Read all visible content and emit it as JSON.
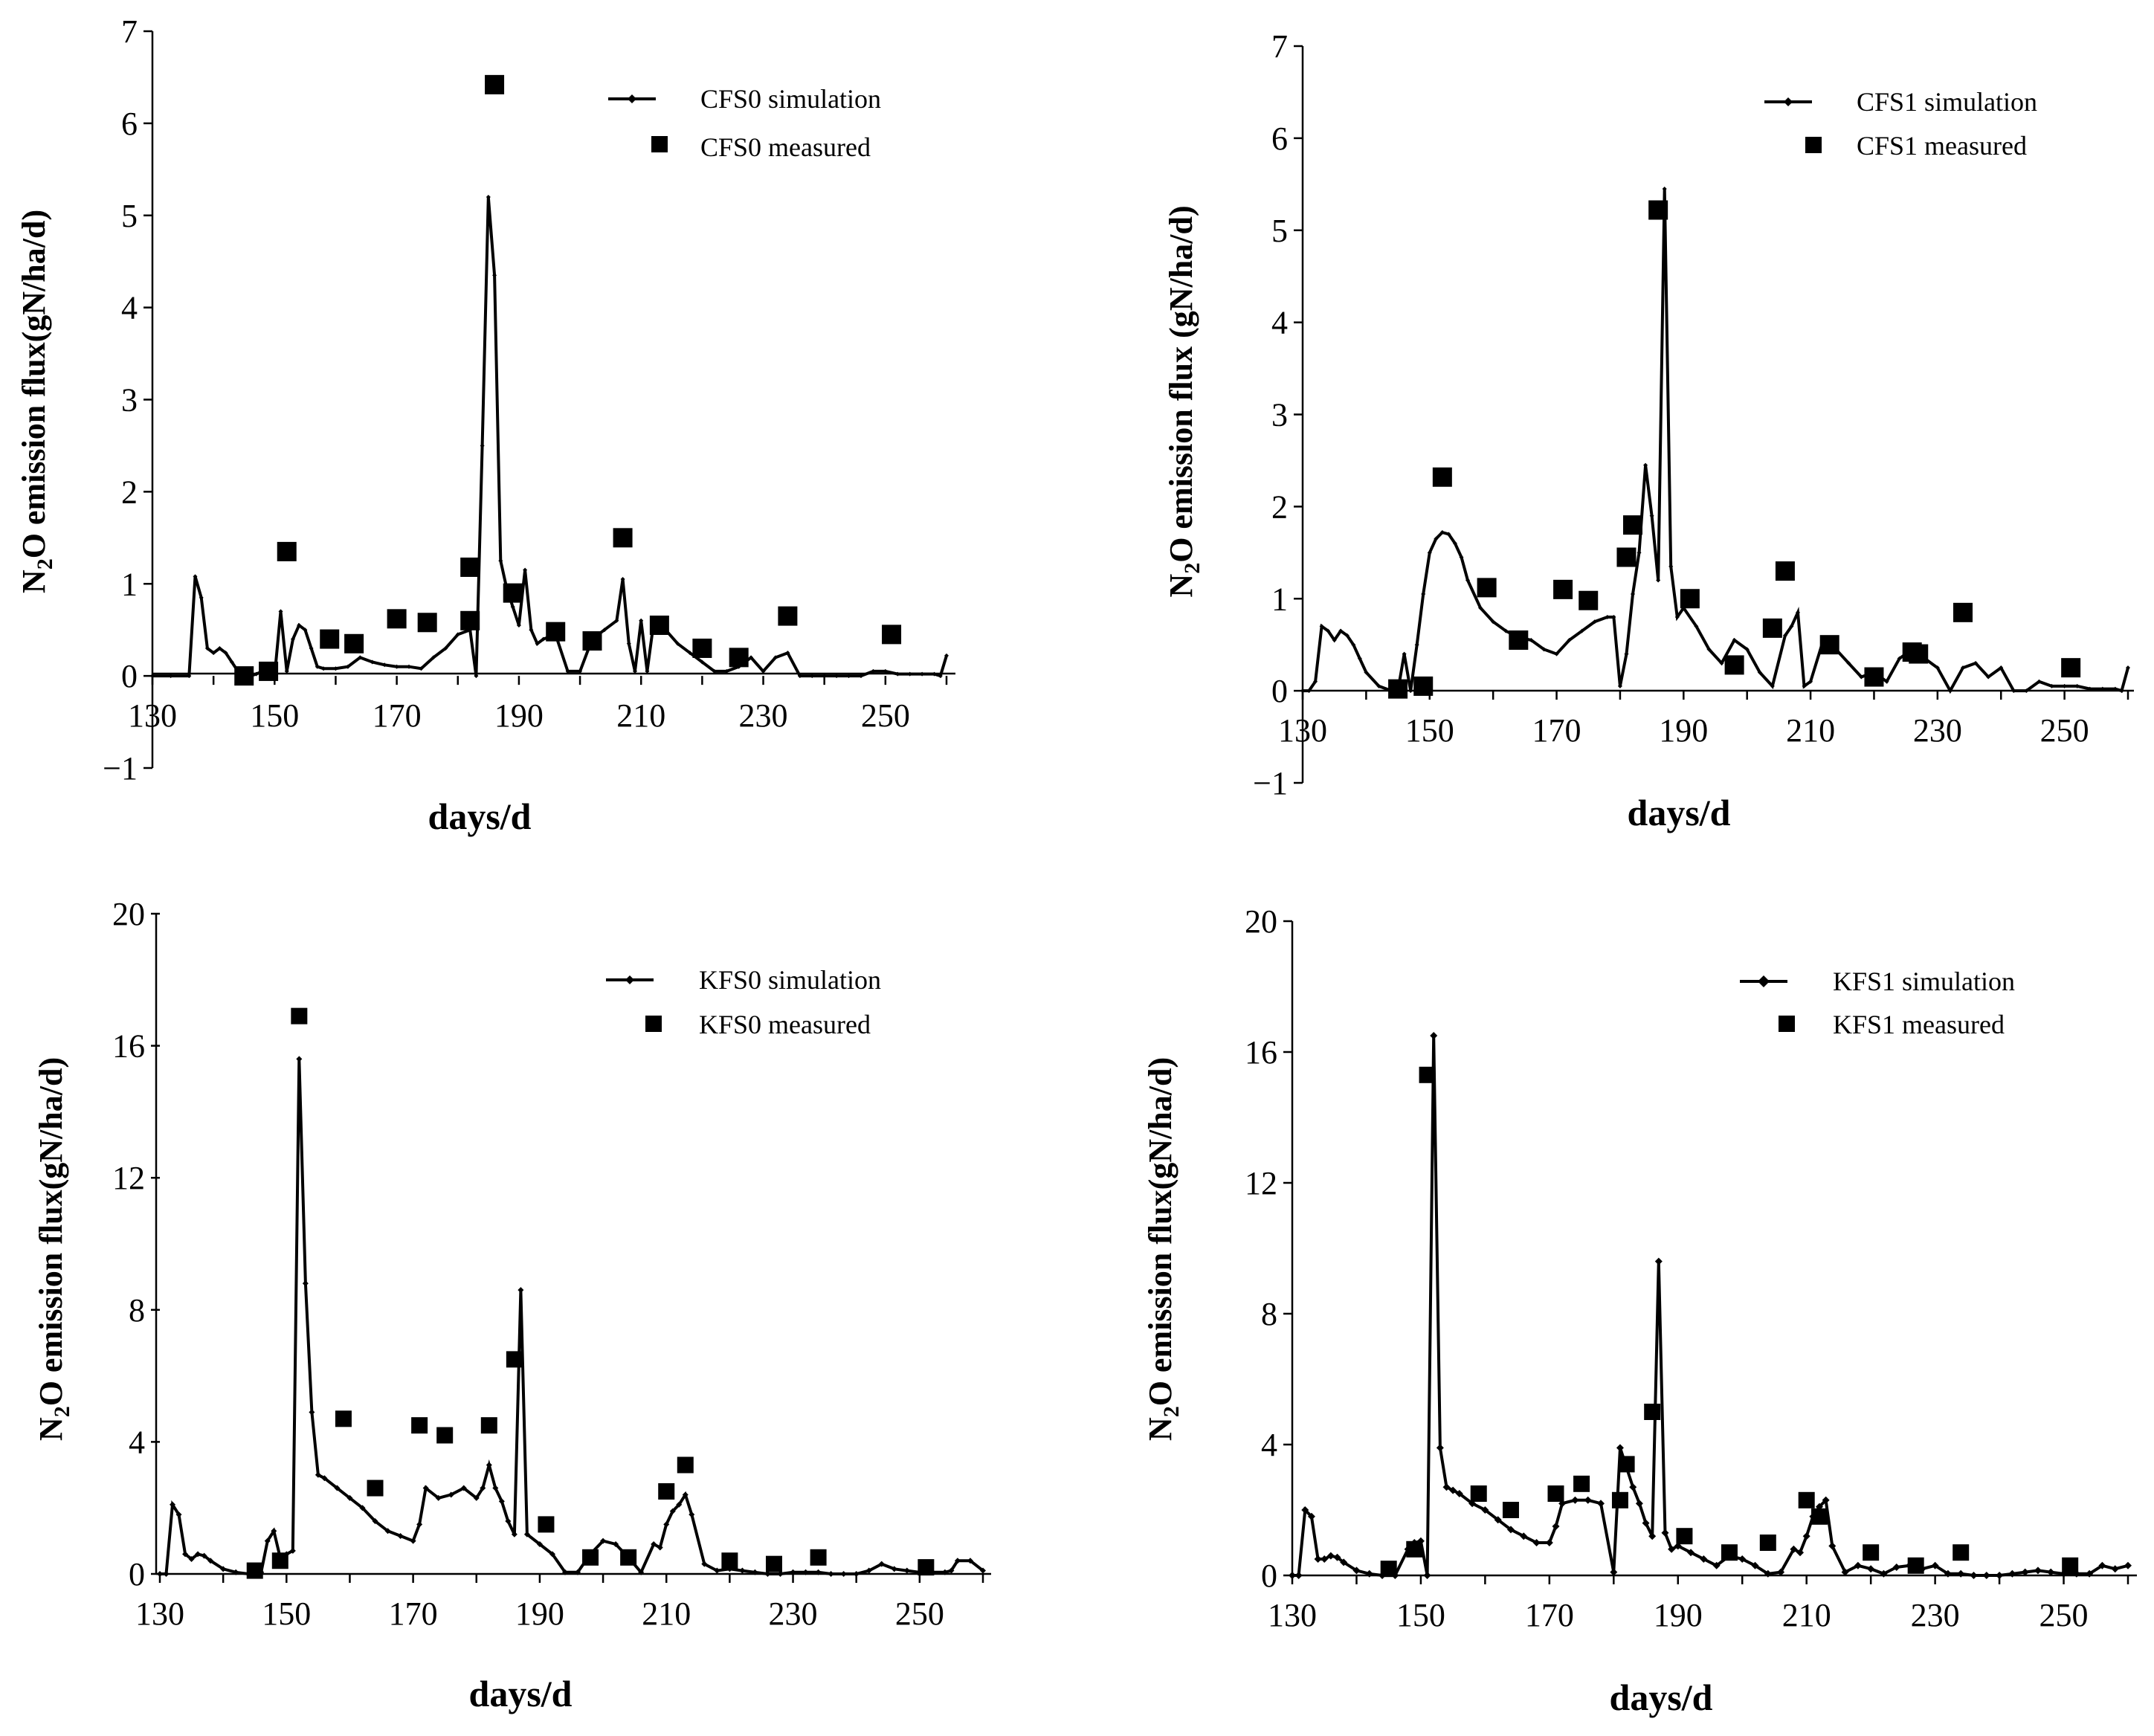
{
  "chart_data": [
    {
      "id": "cfs0",
      "type": "line+scatter",
      "xlabel": "days/d",
      "ylabel": "N2O emission flux(gN/ha/d)",
      "xlim": [
        130,
        260
      ],
      "ylim": [
        -1,
        7
      ],
      "xticks": [
        "130",
        "150",
        "170",
        "190",
        "210",
        "230",
        "250"
      ],
      "yticks": [
        "−1",
        "0",
        "1",
        "2",
        "3",
        "4",
        "5",
        "6",
        "7"
      ],
      "series": [
        {
          "name": "CFS0 simulation",
          "kind": "line",
          "x": [
            130,
            133,
            136,
            137,
            138,
            139,
            140,
            141,
            142,
            143,
            144,
            145,
            146,
            147,
            148,
            149,
            150,
            151,
            152,
            153,
            154,
            155,
            156,
            157,
            158,
            160,
            162,
            164,
            166,
            168,
            170,
            172,
            174,
            176,
            178,
            180,
            182,
            183,
            184,
            185,
            186,
            187,
            188,
            189,
            190,
            191,
            192,
            193,
            194,
            196,
            198,
            200,
            202,
            204,
            206,
            207,
            208,
            209,
            210,
            211,
            212,
            214,
            216,
            218,
            220,
            222,
            224,
            226,
            228,
            230,
            232,
            234,
            236,
            238,
            240,
            242,
            244,
            246,
            248,
            250,
            252,
            254,
            256,
            258,
            259,
            260
          ],
          "y": [
            0,
            0,
            0,
            1.08,
            0.85,
            0.3,
            0.25,
            0.3,
            0.25,
            0.15,
            0.05,
            0,
            0,
            0.02,
            0.05,
            0.02,
            0,
            0.7,
            0.05,
            0.4,
            0.55,
            0.5,
            0.3,
            0.1,
            0.08,
            0.08,
            0.1,
            0.2,
            0.15,
            0.12,
            0.1,
            0.1,
            0.08,
            0.2,
            0.3,
            0.45,
            0.5,
            0,
            2.5,
            5.2,
            4.35,
            1.25,
            0.95,
            0.75,
            0.55,
            1.15,
            0.5,
            0.35,
            0.4,
            0.45,
            0.05,
            0.05,
            0.4,
            0.5,
            0.6,
            1.05,
            0.35,
            0.05,
            0.6,
            0.05,
            0.55,
            0.5,
            0.35,
            0.25,
            0.15,
            0.05,
            0.05,
            0.1,
            0.2,
            0.05,
            0.2,
            0.25,
            0,
            0,
            0,
            0,
            0,
            0,
            0.05,
            0.05,
            0.02,
            0.02,
            0.02,
            0.02,
            0,
            0.22
          ],
          "marker_size": 3
        },
        {
          "name": "CFS0 measured",
          "kind": "scatter",
          "x": [
            145,
            149,
            152,
            159,
            163,
            170,
            175,
            182,
            182,
            189,
            196,
            202,
            207,
            213,
            220,
            226,
            234,
            251
          ],
          "y": [
            0,
            0.05,
            1.35,
            0.4,
            0.35,
            0.62,
            0.58,
            0.6,
            1.18,
            0.9,
            0.48,
            0.38,
            1.5,
            0.55,
            0.3,
            0.2,
            0.65,
            0.45
          ],
          "extra_x": [
            186
          ],
          "extra_y": [
            6.42
          ]
        }
      ]
    },
    {
      "id": "cfs1",
      "type": "line+scatter",
      "xlabel": "days/d",
      "ylabel": "N2O emission flux (gN/ha/d)",
      "xlim": [
        130,
        260
      ],
      "ylim": [
        -1,
        7
      ],
      "xticks": [
        "130",
        "150",
        "170",
        "190",
        "210",
        "230",
        "250"
      ],
      "yticks": [
        "−1",
        "0",
        "1",
        "2",
        "3",
        "4",
        "5",
        "6",
        "7"
      ],
      "series": [
        {
          "name": "CFS1 simulation",
          "kind": "line",
          "x": [
            130,
            131,
            132,
            133,
            134,
            135,
            136,
            137,
            138,
            139,
            140,
            142,
            144,
            145,
            146,
            147,
            148,
            149,
            150,
            151,
            152,
            153,
            154,
            155,
            156,
            158,
            160,
            162,
            164,
            166,
            168,
            170,
            172,
            174,
            176,
            178,
            179,
            180,
            181,
            182,
            183,
            184,
            185,
            186,
            187,
            188,
            189,
            190,
            192,
            194,
            196,
            198,
            200,
            202,
            204,
            206,
            207,
            208,
            209,
            210,
            212,
            214,
            216,
            218,
            220,
            222,
            224,
            226,
            228,
            230,
            232,
            234,
            236,
            238,
            240,
            242,
            244,
            246,
            248,
            250,
            252,
            254,
            256,
            258,
            259,
            260
          ],
          "y": [
            0,
            0,
            0.1,
            0.7,
            0.65,
            0.55,
            0.65,
            0.6,
            0.5,
            0.35,
            0.2,
            0.05,
            0,
            0,
            0.4,
            0,
            0.5,
            1.05,
            1.5,
            1.65,
            1.72,
            1.7,
            1.6,
            1.45,
            1.2,
            0.9,
            0.75,
            0.65,
            0.58,
            0.55,
            0.45,
            0.4,
            0.55,
            0.65,
            0.75,
            0.8,
            0.8,
            0.05,
            0.4,
            1.05,
            1.5,
            2.45,
            1.9,
            1.2,
            5.45,
            1.35,
            0.8,
            0.9,
            0.7,
            0.45,
            0.3,
            0.55,
            0.45,
            0.2,
            0.05,
            0.6,
            0.7,
            0.85,
            0.05,
            0.1,
            0.55,
            0.45,
            0.3,
            0.15,
            0.2,
            0.1,
            0.35,
            0.45,
            0.35,
            0.25,
            0,
            0.25,
            0.3,
            0.15,
            0.25,
            0,
            0,
            0.1,
            0.05,
            0.05,
            0.05,
            0.02,
            0.02,
            0.02,
            0,
            0.25
          ],
          "marker_size": 3
        },
        {
          "name": "CFS1 measured",
          "kind": "scatter",
          "x": [
            145,
            149,
            152,
            159,
            164,
            171,
            175,
            181,
            182,
            186,
            191,
            198,
            204,
            206,
            213,
            220,
            226,
            227,
            234,
            251
          ],
          "y": [
            0.02,
            0.05,
            2.32,
            1.12,
            0.55,
            1.1,
            0.98,
            1.45,
            1.8,
            5.22,
            1.0,
            0.28,
            0.68,
            1.3,
            0.5,
            0.15,
            0.42,
            0.4,
            0.85,
            0.25
          ]
        }
      ]
    },
    {
      "id": "kfs0",
      "type": "line+scatter",
      "xlabel": "days/d",
      "ylabel": "N2O emission flux(gN/ha/d)",
      "xlim": [
        130,
        260
      ],
      "ylim": [
        0,
        20
      ],
      "xticks": [
        "130",
        "150",
        "170",
        "190",
        "210",
        "230",
        "250"
      ],
      "yticks": [
        "0",
        "4",
        "8",
        "12",
        "16",
        "20"
      ],
      "series": [
        {
          "name": "KFS0 simulation",
          "kind": "line",
          "x": [
            130,
            131,
            132,
            133,
            134,
            135,
            136,
            137,
            138,
            140,
            142,
            144,
            145,
            146,
            147,
            148,
            149,
            150,
            151,
            152,
            153,
            154,
            155,
            156,
            158,
            160,
            162,
            164,
            166,
            168,
            170,
            171,
            172,
            174,
            176,
            178,
            180,
            181,
            182,
            183,
            184,
            185,
            186,
            187,
            188,
            190,
            192,
            194,
            196,
            198,
            200,
            202,
            204,
            206,
            208,
            209,
            210,
            211,
            212,
            213,
            214,
            216,
            218,
            220,
            222,
            224,
            226,
            228,
            230,
            232,
            234,
            236,
            238,
            240,
            242,
            244,
            246,
            248,
            250,
            252,
            254,
            255,
            256,
            258,
            260
          ],
          "y": [
            0,
            0,
            2.1,
            1.8,
            0.6,
            0.45,
            0.6,
            0.55,
            0.4,
            0.15,
            0.05,
            0,
            0,
            0.05,
            1.0,
            1.3,
            0.5,
            0.6,
            0.7,
            15.6,
            8.8,
            4.9,
            3.0,
            2.9,
            2.6,
            2.3,
            2.0,
            1.6,
            1.3,
            1.15,
            1.0,
            1.5,
            2.6,
            2.3,
            2.4,
            2.6,
            2.3,
            2.6,
            3.3,
            2.6,
            2.2,
            1.6,
            1.2,
            8.6,
            1.2,
            0.9,
            0.6,
            0.05,
            0.05,
            0.6,
            1.0,
            0.9,
            0.5,
            0.05,
            0.9,
            0.8,
            1.5,
            1.9,
            2.1,
            2.4,
            1.8,
            0.3,
            0.1,
            0.15,
            0.1,
            0.05,
            0,
            0,
            0.05,
            0.05,
            0.05,
            0,
            0,
            0,
            0.1,
            0.3,
            0.15,
            0.1,
            0.05,
            0.05,
            0.05,
            0.1,
            0.4,
            0.4,
            0.1
          ],
          "marker_size": 4
        },
        {
          "name": "KFS0 measured",
          "kind": "scatter",
          "x": [
            145,
            149,
            152,
            159,
            164,
            171,
            175,
            182,
            186,
            191,
            198,
            204,
            210,
            213,
            220,
            227,
            234,
            251
          ],
          "y": [
            0.1,
            0.4,
            16.9,
            4.7,
            2.6,
            4.5,
            4.2,
            4.5,
            6.5,
            1.5,
            0.5,
            0.5,
            2.5,
            3.3,
            0.4,
            0.3,
            0.5,
            0.2
          ]
        }
      ]
    },
    {
      "id": "kfs1",
      "type": "line+scatter",
      "xlabel": "days/d",
      "ylabel": "N2O emission flux(gN/ha/d)",
      "xlim": [
        130,
        260
      ],
      "ylim": [
        0,
        20
      ],
      "xticks": [
        "130",
        "150",
        "170",
        "190",
        "210",
        "230",
        "250"
      ],
      "yticks": [
        "0",
        "4",
        "8",
        "12",
        "16",
        "20"
      ],
      "series": [
        {
          "name": "KFS1 simulation",
          "kind": "line",
          "x": [
            130,
            131,
            132,
            133,
            134,
            135,
            136,
            137,
            138,
            140,
            142,
            144,
            146,
            148,
            149,
            150,
            151,
            152,
            153,
            154,
            155,
            156,
            158,
            160,
            162,
            164,
            166,
            168,
            170,
            171,
            172,
            174,
            176,
            178,
            180,
            181,
            182,
            183,
            184,
            185,
            186,
            187,
            188,
            189,
            190,
            192,
            194,
            196,
            198,
            200,
            202,
            204,
            206,
            208,
            209,
            210,
            211,
            212,
            213,
            214,
            216,
            218,
            220,
            222,
            224,
            226,
            228,
            230,
            232,
            234,
            236,
            238,
            240,
            242,
            244,
            246,
            248,
            250,
            252,
            254,
            256,
            258,
            260
          ],
          "y": [
            0,
            0,
            2.0,
            1.8,
            0.5,
            0.5,
            0.6,
            0.55,
            0.4,
            0.15,
            0.05,
            0,
            0,
            0.8,
            1.0,
            1.05,
            0,
            16.5,
            3.9,
            2.7,
            2.6,
            2.5,
            2.2,
            2.0,
            1.7,
            1.4,
            1.2,
            1.0,
            1.0,
            1.5,
            2.2,
            2.3,
            2.3,
            2.2,
            0.1,
            3.9,
            3.3,
            2.7,
            2.2,
            1.6,
            1.2,
            9.6,
            1.3,
            0.8,
            0.9,
            0.7,
            0.5,
            0.3,
            0.6,
            0.5,
            0.3,
            0.05,
            0.1,
            0.8,
            0.7,
            1.2,
            1.8,
            2.1,
            2.3,
            0.9,
            0.1,
            0.3,
            0.2,
            0.05,
            0.25,
            0.3,
            0.2,
            0.3,
            0.05,
            0.05,
            0,
            0,
            0,
            0.05,
            0.1,
            0.15,
            0.1,
            0.05,
            0.05,
            0.05,
            0.3,
            0.2,
            0.3
          ],
          "marker_size": 5
        },
        {
          "name": "KFS1 measured",
          "kind": "scatter",
          "x": [
            145,
            149,
            151,
            159,
            164,
            171,
            175,
            181,
            182,
            186,
            191,
            198,
            204,
            210,
            212,
            220,
            227,
            234,
            251
          ],
          "y": [
            0.2,
            0.8,
            15.3,
            2.5,
            2.0,
            2.5,
            2.8,
            2.3,
            3.4,
            5.0,
            1.2,
            0.7,
            1.0,
            2.3,
            1.8,
            0.7,
            0.3,
            0.7,
            0.3
          ]
        }
      ]
    }
  ]
}
